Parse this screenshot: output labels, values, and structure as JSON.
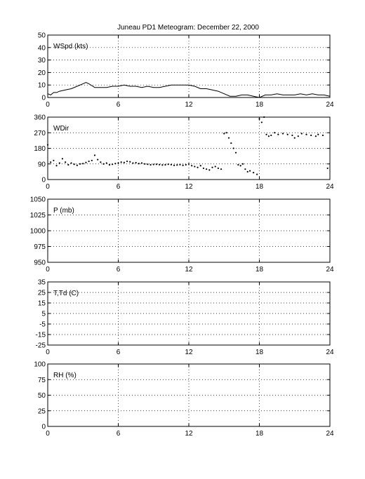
{
  "title": "Juneau PD1 Meteogram:   December 22, 2000",
  "chart_data": [
    {
      "type": "line",
      "label": "WSpd (kts)",
      "xlim": [
        0,
        24
      ],
      "xticks": [
        0,
        6,
        12,
        18,
        24
      ],
      "ylim": [
        0,
        50
      ],
      "yticks": [
        0,
        10,
        20,
        30,
        40,
        50
      ],
      "grid": true,
      "series": [
        {
          "x": [
            0,
            0.25,
            0.5,
            0.75,
            1,
            1.5,
            2,
            2.5,
            3,
            3.25,
            3.5,
            4,
            4.5,
            5,
            5.5,
            6,
            6.5,
            7,
            7.5,
            8,
            8.5,
            9,
            9.5,
            10,
            10.5,
            11,
            11.5,
            12,
            12.5,
            13,
            13.5,
            14,
            14.5,
            15,
            15.5,
            16,
            16.5,
            17,
            17.5,
            18,
            18.5,
            19,
            19.5,
            20,
            20.5,
            21,
            21.5,
            22,
            22.5,
            23,
            23.5,
            24
          ],
          "y": [
            3,
            2,
            4,
            4,
            5,
            6,
            7,
            9,
            11,
            12,
            11,
            8,
            8,
            8,
            9,
            9,
            10,
            9,
            9,
            8,
            9,
            8,
            8,
            9,
            10,
            10,
            10,
            10,
            9,
            7,
            7,
            6,
            5,
            3,
            1,
            1,
            2,
            2,
            1,
            0,
            2,
            2,
            3,
            2,
            2,
            2,
            3,
            2,
            3,
            2,
            2,
            1
          ]
        }
      ]
    },
    {
      "type": "scatter",
      "label": "WDir",
      "xlim": [
        0,
        24
      ],
      "xticks": [
        0,
        6,
        12,
        18,
        24
      ],
      "ylim": [
        0,
        360
      ],
      "yticks": [
        0,
        90,
        180,
        270,
        360
      ],
      "grid": true,
      "series": [
        {
          "x": [
            0,
            0.25,
            0.5,
            0.75,
            1,
            1.25,
            1.5,
            1.75,
            2,
            2.25,
            2.5,
            2.75,
            3,
            3.25,
            3.5,
            3.75,
            4,
            4.25,
            4.5,
            4.75,
            5,
            5.25,
            5.5,
            5.75,
            6,
            6.25,
            6.5,
            6.75,
            7,
            7.25,
            7.5,
            7.75,
            8,
            8.25,
            8.5,
            8.75,
            9,
            9.25,
            9.5,
            9.75,
            10,
            10.25,
            10.5,
            10.75,
            11,
            11.25,
            11.5,
            11.75,
            12,
            12.25,
            12.5,
            12.75,
            13,
            13.25,
            13.5,
            13.75,
            14,
            14.25,
            14.5,
            14.75,
            15,
            15.2,
            15.4,
            15.6,
            15.8,
            16,
            16.2,
            16.4,
            16.6,
            16.8,
            17,
            17.2,
            17.5,
            17.8,
            18,
            18.2,
            18.4,
            18.6,
            18.8,
            19,
            19.3,
            19.6,
            20,
            20.4,
            20.8,
            21,
            21.3,
            21.6,
            22,
            22.4,
            22.8,
            23,
            23.4,
            23.8
          ],
          "y": [
            200,
            100,
            110,
            80,
            95,
            120,
            100,
            85,
            95,
            88,
            82,
            90,
            92,
            98,
            105,
            110,
            140,
            115,
            100,
            90,
            95,
            85,
            88,
            92,
            95,
            100,
            98,
            105,
            102,
            95,
            97,
            92,
            95,
            90,
            88,
            85,
            87,
            88,
            86,
            84,
            85,
            88,
            86,
            82,
            84,
            86,
            82,
            85,
            90,
            80,
            75,
            70,
            80,
            65,
            60,
            55,
            70,
            75,
            65,
            60,
            265,
            270,
            240,
            210,
            180,
            155,
            85,
            80,
            90,
            60,
            45,
            50,
            40,
            30,
            350,
            330,
            360,
            260,
            250,
            255,
            270,
            260,
            265,
            260,
            255,
            240,
            250,
            265,
            260,
            255,
            250,
            260,
            255,
            65
          ]
        }
      ]
    },
    {
      "type": "line",
      "label": "P (mb)",
      "xlim": [
        0,
        24
      ],
      "xticks": [
        0,
        6,
        12,
        18,
        24
      ],
      "ylim": [
        950,
        1050
      ],
      "yticks": [
        950,
        975,
        1000,
        1025,
        1050
      ],
      "grid": true,
      "series": []
    },
    {
      "type": "line",
      "label": "T,Td (C)",
      "xlim": [
        0,
        24
      ],
      "xticks": [
        0,
        6,
        12,
        18,
        24
      ],
      "ylim": [
        -25,
        35
      ],
      "yticks": [
        -25,
        -15,
        -5,
        5,
        15,
        25,
        35
      ],
      "grid": true,
      "series": []
    },
    {
      "type": "line",
      "label": "RH (%)",
      "xlim": [
        0,
        24
      ],
      "xticks": [
        0,
        6,
        12,
        18,
        24
      ],
      "ylim": [
        0,
        100
      ],
      "yticks": [
        0,
        25,
        50,
        75,
        100
      ],
      "grid": true,
      "series": []
    }
  ]
}
